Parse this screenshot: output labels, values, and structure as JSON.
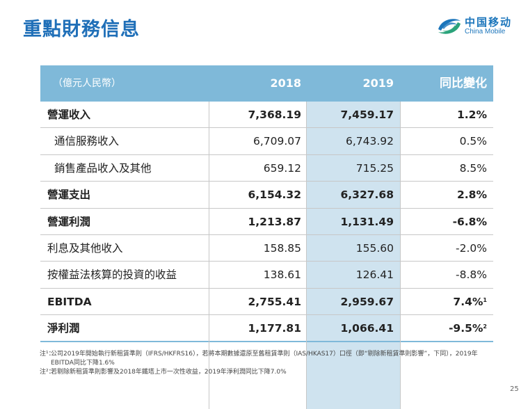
{
  "title": "重點財務信息",
  "logo": {
    "cn": "中国移动",
    "en": "China Mobile"
  },
  "table": {
    "header": {
      "unit": "（億元人民幣）",
      "col2018": "2018",
      "col2019": "2019",
      "yoy": "同比變化"
    },
    "rows": [
      {
        "label": "營運收入",
        "v2018": "7,368.19",
        "v2019": "7,459.17",
        "yoy": "1.2%",
        "sup": ""
      },
      {
        "label": "通信服務收入",
        "v2018": "6,709.07",
        "v2019": "6,743.92",
        "yoy": "0.5%",
        "sup": ""
      },
      {
        "label": "銷售產品收入及其他",
        "v2018": "659.12",
        "v2019": "715.25",
        "yoy": "8.5%",
        "sup": ""
      },
      {
        "label": "營運支出",
        "v2018": "6,154.32",
        "v2019": "6,327.68",
        "yoy": "2.8%",
        "sup": ""
      },
      {
        "label": "營運利潤",
        "v2018": "1,213.87",
        "v2019": "1,131.49",
        "yoy": "-6.8%",
        "sup": ""
      },
      {
        "label": "利息及其他收入",
        "v2018": "158.85",
        "v2019": "155.60",
        "yoy": "-2.0%",
        "sup": ""
      },
      {
        "label": "按權益法核算的投資的收益",
        "v2018": "138.61",
        "v2019": "126.41",
        "yoy": "-8.8%",
        "sup": ""
      },
      {
        "label": "EBITDA",
        "v2018": "2,755.41",
        "v2019": "2,959.67",
        "yoy": "7.4%",
        "sup": "1"
      },
      {
        "label": "淨利潤",
        "v2018": "1,177.81",
        "v2019": "1,066.41",
        "yoy": "-9.5%",
        "sup": "2"
      }
    ]
  },
  "notes": [
    {
      "mark": "注¹：",
      "text": "公司2019年開始執行新租賃準則（IFRS/HKFRS16），若將本期數據還原至舊租賃準則（IAS/HKAS17）口徑（即“剔除新租賃準則影響”，下同），2019年EBITDA同比下降1.6%"
    },
    {
      "mark": "注²：",
      "text": "若剔除新租賃準則影響及2018年鐵塔上市一次性收益，2019年淨利潤同比下降7.0%"
    }
  ],
  "page_number": "25"
}
